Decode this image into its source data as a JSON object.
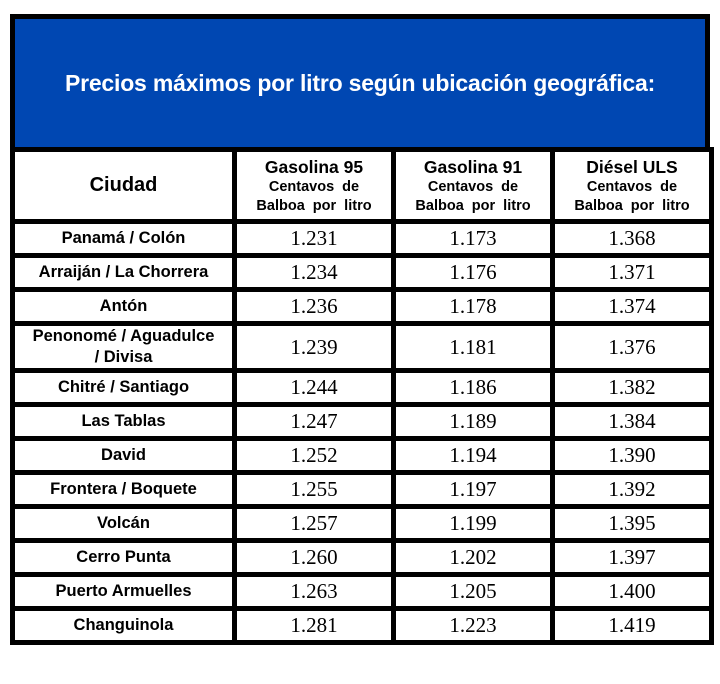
{
  "banner": {
    "title": "Precios máximos por litro según ubicación geográfica:",
    "bg_color": "#0047B2",
    "text_color": "#FFFFFF",
    "border_color": "#000000"
  },
  "table": {
    "city_header": "Ciudad",
    "columns": [
      {
        "title": "Gasolina 95",
        "subtitle_line1": "Centavos de",
        "subtitle_line2": "Balboa por litro"
      },
      {
        "title": "Gasolina 91",
        "subtitle_line1": "Centavos de",
        "subtitle_line2": "Balboa por litro"
      },
      {
        "title": "Diésel ULS",
        "subtitle_line1": "Centavos de",
        "subtitle_line2": "Balboa por litro"
      }
    ],
    "rows": [
      {
        "city": "Panamá / Colón",
        "gasolina95": "1.231",
        "gasolina91": "1.173",
        "diesel_uls": "1.368"
      },
      {
        "city": "Arraiján / La Chorrera",
        "gasolina95": "1.234",
        "gasolina91": "1.176",
        "diesel_uls": "1.371"
      },
      {
        "city": "Antón",
        "gasolina95": "1.236",
        "gasolina91": "1.178",
        "diesel_uls": "1.374"
      },
      {
        "city": "Penonomé / Aguadulce\n/ Divisa",
        "gasolina95": "1.239",
        "gasolina91": "1.181",
        "diesel_uls": "1.376"
      },
      {
        "city": "Chitré / Santiago",
        "gasolina95": "1.244",
        "gasolina91": "1.186",
        "diesel_uls": "1.382"
      },
      {
        "city": "Las Tablas",
        "gasolina95": "1.247",
        "gasolina91": "1.189",
        "diesel_uls": "1.384"
      },
      {
        "city": "David",
        "gasolina95": "1.252",
        "gasolina91": "1.194",
        "diesel_uls": "1.390"
      },
      {
        "city": "Frontera / Boquete",
        "gasolina95": "1.255",
        "gasolina91": "1.197",
        "diesel_uls": "1.392"
      },
      {
        "city": "Volcán",
        "gasolina95": "1.257",
        "gasolina91": "1.199",
        "diesel_uls": "1.395"
      },
      {
        "city": "Cerro Punta",
        "gasolina95": "1.260",
        "gasolina91": "1.202",
        "diesel_uls": "1.397"
      },
      {
        "city": "Puerto Armuelles",
        "gasolina95": "1.263",
        "gasolina91": "1.205",
        "diesel_uls": "1.400"
      },
      {
        "city": "Changuinola",
        "gasolina95": "1.281",
        "gasolina91": "1.223",
        "diesel_uls": "1.419"
      }
    ]
  }
}
